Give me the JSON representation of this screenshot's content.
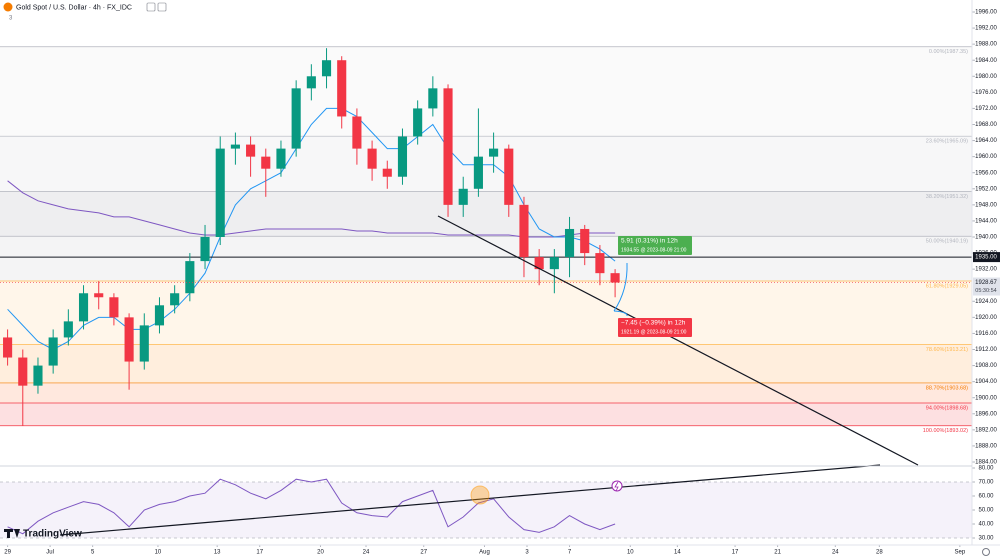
{
  "header": {
    "title": "Gold Spot / U.S. Dollar · 4h · FX_IDC",
    "badge": "3",
    "logo": "TradingView"
  },
  "chart_data": {
    "type": "candlestick",
    "xlim": [
      0,
      64
    ],
    "xticks": [
      {
        "value": 0.5,
        "label": "29"
      },
      {
        "value": 3.3,
        "label": "Jul"
      },
      {
        "value": 6.1,
        "label": "5"
      },
      {
        "value": 10.4,
        "label": "10"
      },
      {
        "value": 14.3,
        "label": "13"
      },
      {
        "value": 17.1,
        "label": "17"
      },
      {
        "value": 21.1,
        "label": "20"
      },
      {
        "value": 24.1,
        "label": "24"
      },
      {
        "value": 27.9,
        "label": "27"
      },
      {
        "value": 31.9,
        "label": "Aug"
      },
      {
        "value": 34.7,
        "label": "3"
      },
      {
        "value": 37.5,
        "label": "7"
      },
      {
        "value": 41.5,
        "label": "10"
      },
      {
        "value": 44.6,
        "label": "14"
      },
      {
        "value": 48.4,
        "label": "17"
      },
      {
        "value": 51.2,
        "label": "21"
      },
      {
        "value": 55,
        "label": "24"
      },
      {
        "value": 57.9,
        "label": "28"
      },
      {
        "value": 63.2,
        "label": "Sep"
      }
    ],
    "ylim": [
      1884,
      1996
    ],
    "yticks": [
      {
        "value": 1884,
        "label": "1884.00"
      },
      {
        "value": 1888,
        "label": "1888.00"
      },
      {
        "value": 1892,
        "label": "1892.00"
      },
      {
        "value": 1896,
        "label": "1896.00"
      },
      {
        "value": 1900,
        "label": "1900.00"
      },
      {
        "value": 1904,
        "label": "1904.00"
      },
      {
        "value": 1908,
        "label": "1908.00"
      },
      {
        "value": 1912,
        "label": "1912.00"
      },
      {
        "value": 1916,
        "label": "1916.00"
      },
      {
        "value": 1920,
        "label": "1920.00"
      },
      {
        "value": 1924,
        "label": "1924.00"
      },
      {
        "value": 1932,
        "label": "1932.00"
      },
      {
        "value": 1936,
        "label": "1936.00"
      },
      {
        "value": 1940,
        "label": "1940.00"
      },
      {
        "value": 1944,
        "label": "1944.00"
      },
      {
        "value": 1948,
        "label": "1948.00"
      },
      {
        "value": 1952,
        "label": "1952.00"
      },
      {
        "value": 1956,
        "label": "1956.00"
      },
      {
        "value": 1960,
        "label": "1960.00"
      },
      {
        "value": 1964,
        "label": "1964.00"
      },
      {
        "value": 1968,
        "label": "1968.00"
      },
      {
        "value": 1972,
        "label": "1972.00"
      },
      {
        "value": 1976,
        "label": "1976.00"
      },
      {
        "value": 1980,
        "label": "1980.00"
      },
      {
        "value": 1984,
        "label": "1984.00"
      },
      {
        "value": 1988,
        "label": "1988.00"
      },
      {
        "value": 1992,
        "label": "1992.00"
      },
      {
        "value": 1996,
        "label": "1996.00"
      }
    ],
    "up_color": "#089981",
    "down_color": "#f23645",
    "x": [
      0.5,
      1.5,
      2.5,
      3.5,
      4.5,
      5.5,
      6.5,
      7.5,
      8.5,
      9.5,
      10.5,
      11.5,
      12.5,
      13.5,
      14.5,
      15.5,
      16.5,
      17.5,
      18.5,
      19.5,
      20.5,
      21.5,
      22.5,
      23.5,
      24.5,
      25.5,
      26.5,
      27.5,
      28.5,
      29.5,
      30.5,
      31.5,
      32.5,
      33.5,
      34.5,
      35.5,
      36.5,
      37.5,
      38.5,
      39.5,
      40.5
    ],
    "open": [
      1915,
      1910,
      1903,
      1908,
      1915,
      1919,
      1926,
      1925,
      1920,
      1909,
      1918,
      1923,
      1926,
      1934,
      1940,
      1962,
      1963,
      1960,
      1957,
      1962,
      1977,
      1980,
      1984,
      1970,
      1962,
      1957,
      1955,
      1965,
      1972,
      1977,
      1948,
      1952,
      1960,
      1962,
      1948,
      1935,
      1932,
      1935,
      1942,
      1936,
      1931
    ],
    "high": [
      1917,
      1912,
      1910,
      1917,
      1922,
      1928,
      1929,
      1926,
      1921,
      1921,
      1925,
      1928,
      1936,
      1943,
      1965,
      1966,
      1965,
      1962,
      1964,
      1979,
      1983,
      1987,
      1985,
      1972,
      1964,
      1959,
      1967,
      1974,
      1980,
      1978,
      1955,
      1972,
      1966,
      1963,
      1950,
      1937,
      1937,
      1945,
      1943,
      1938,
      1932
    ],
    "low": [
      1908,
      1893,
      1901,
      1906,
      1913,
      1917,
      1922,
      1918,
      1902,
      1907,
      1916,
      1921,
      1924,
      1932,
      1938,
      1958,
      1955,
      1950,
      1955,
      1960,
      1974,
      1977,
      1967,
      1958,
      1954,
      1952,
      1953,
      1963,
      1970,
      1945,
      1945,
      1950,
      1956,
      1945,
      1930,
      1928,
      1926,
      1930,
      1933,
      1928,
      1925
    ],
    "close": [
      1910,
      1903,
      1908,
      1915,
      1919,
      1926,
      1925,
      1920,
      1909,
      1918,
      1923,
      1926,
      1934,
      1940,
      1962,
      1963,
      1960,
      1957,
      1962,
      1977,
      1980,
      1984,
      1970,
      1962,
      1957,
      1955,
      1965,
      1972,
      1977,
      1948,
      1952,
      1960,
      1962,
      1948,
      1935,
      1932,
      1935,
      1942,
      1936,
      1931,
      1928.67
    ],
    "moving_averages": [
      {
        "color": "#7e57c2",
        "values": [
          1954,
          1951,
          1949,
          1948,
          1947,
          1946.5,
          1946,
          1945,
          1945,
          1944,
          1943,
          1942,
          1941,
          1940.5,
          1940.5,
          1941,
          1941.5,
          1942,
          1942,
          1942,
          1942,
          1942,
          1942,
          1941.5,
          1941.5,
          1941,
          1941,
          1941,
          1941,
          1940.5,
          1940.5,
          1940.5,
          1940.5,
          1940.5,
          1940,
          1940,
          1940,
          1940.5,
          1941,
          1941,
          1941
        ]
      },
      {
        "color": "#2196f3",
        "values": [
          1922,
          1918,
          1914,
          1912,
          1914,
          1918,
          1920,
          1920,
          1917,
          1917,
          1919,
          1922,
          1926,
          1931,
          1940,
          1948,
          1952,
          1954,
          1956,
          1962,
          1968,
          1972,
          1972,
          1970,
          1966,
          1962,
          1962,
          1965,
          1968,
          1962,
          1958,
          1958,
          1958,
          1955,
          1948,
          1942,
          1940,
          1940,
          1939,
          1937,
          1934
        ]
      }
    ],
    "fib_levels": [
      {
        "value": 1987.35,
        "label": "0.00%(1987.35)",
        "color": "#b2b5be",
        "fill": "#fafafa"
      },
      {
        "value": 1965.09,
        "label": "23.60%(1965.09)",
        "color": "#b2b5be",
        "fill": "#f7f7f8"
      },
      {
        "value": 1951.32,
        "label": "38.20%(1951.32)",
        "color": "#b2b5be",
        "fill": "#eeeef0"
      },
      {
        "value": 1940.19,
        "label": "50.00%(1940.19)",
        "color": "#b2b5be",
        "fill": "#f4f4f5"
      },
      {
        "value": 1929.05,
        "label": "61.80%(1929.05)",
        "color": "#ffb74d",
        "fill": "#fff6ea"
      },
      {
        "value": 1913.21,
        "label": "78.60%(1913.21)",
        "color": "#ffb74d",
        "fill": "#ffeedd"
      },
      {
        "value": 1903.68,
        "label": "88.70%(1903.68)",
        "color": "#f57c00",
        "fill": "#ffe8de"
      },
      {
        "value": 1898.68,
        "label": "94.00%(1898.68)",
        "color": "#f23645",
        "fill": "#fde0e1"
      },
      {
        "value": 1893.02,
        "label": "100.00%(1893.02)",
        "color": "#f23645"
      }
    ],
    "hline": {
      "value": 1935,
      "label": "1935.00"
    },
    "last_price": {
      "value": 1928.67,
      "label": "1928.67",
      "countdown": "05:30:54"
    },
    "forecast_up": {
      "line1": "5.91 (0.31%) in 12h",
      "line2": "1934.55 @ 2023-08-09  21:00"
    },
    "forecast_down": {
      "line1": "−7.45 (−0.39%) in 12h",
      "line2": "1921.19 @ 2023-08-09  21:00"
    },
    "rsi": {
      "color": "#7e57c2",
      "ylim": [
        30,
        80
      ],
      "band": [
        30,
        70
      ],
      "yticks": [
        {
          "value": 30,
          "label": "30.00"
        },
        {
          "value": 40,
          "label": "40.00"
        },
        {
          "value": 50,
          "label": "50.00"
        },
        {
          "value": 60,
          "label": "60.00"
        },
        {
          "value": 70,
          "label": "70.00"
        },
        {
          "value": 80,
          "label": "80.00"
        }
      ],
      "values": [
        38,
        33,
        42,
        48,
        52,
        56,
        54,
        48,
        38,
        50,
        54,
        56,
        60,
        62,
        72,
        68,
        62,
        58,
        64,
        72,
        70,
        72,
        55,
        48,
        46,
        45,
        56,
        60,
        64,
        38,
        45,
        55,
        58,
        45,
        36,
        34,
        38,
        46,
        40,
        36,
        40
      ]
    }
  }
}
